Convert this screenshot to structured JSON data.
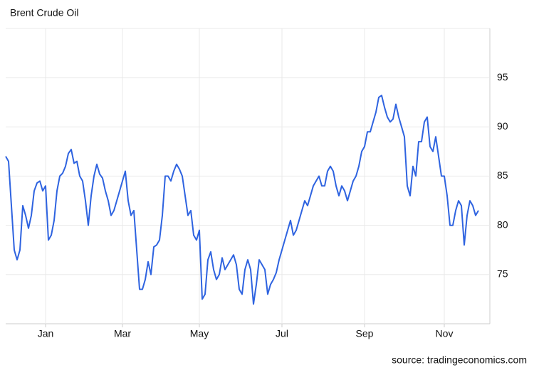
{
  "chart_data": {
    "type": "line",
    "title": "Brent Crude Oil",
    "source": "source: tradingeconomics.com",
    "categories": [
      null,
      null,
      null,
      null,
      null,
      null,
      null,
      null,
      null,
      null,
      null,
      null,
      null,
      null,
      "Jan",
      null,
      null,
      null,
      null,
      null,
      null,
      null,
      null,
      null,
      null,
      null,
      null,
      null,
      null,
      null,
      null,
      null,
      null,
      null,
      null,
      null,
      null,
      null,
      null,
      null,
      null,
      "Mar",
      null,
      null,
      null,
      null,
      null,
      null,
      null,
      null,
      null,
      null,
      null,
      null,
      null,
      null,
      null,
      null,
      null,
      null,
      null,
      null,
      null,
      null,
      null,
      null,
      null,
      null,
      "May",
      null,
      null,
      null,
      null,
      null,
      null,
      null,
      null,
      null,
      null,
      null,
      null,
      null,
      null,
      null,
      null,
      null,
      null,
      null,
      null,
      null,
      null,
      null,
      null,
      null,
      null,
      null,
      null,
      "Jul",
      null,
      null,
      null,
      null,
      null,
      null,
      null,
      null,
      null,
      null,
      null,
      null,
      null,
      null,
      null,
      null,
      null,
      null,
      null,
      null,
      null,
      null,
      null,
      null,
      null,
      null,
      null,
      null,
      "Sep",
      null,
      null,
      null,
      null,
      null,
      null,
      null,
      null,
      null,
      null,
      null,
      null,
      null,
      null,
      null,
      null,
      null,
      null,
      null,
      null,
      null,
      null,
      null,
      null,
      null,
      null,
      null,
      "Nov",
      null,
      null,
      null,
      null,
      null,
      null,
      null,
      null,
      null,
      null,
      null,
      null
    ],
    "values": [
      87,
      86.5,
      82,
      77.5,
      76.5,
      77.5,
      82,
      81,
      79.7,
      81,
      83.5,
      84.3,
      84.5,
      83.5,
      84,
      78.5,
      79,
      80.5,
      83.5,
      85,
      85.3,
      86,
      87.3,
      87.7,
      86.3,
      86.5,
      85,
      84.5,
      82.5,
      80,
      83,
      85,
      86.2,
      85.2,
      84.8,
      83.5,
      82.5,
      81,
      81.5,
      82.5,
      83.5,
      84.5,
      85.5,
      82.5,
      81,
      81.5,
      77.5,
      73.5,
      73.5,
      74.5,
      76.3,
      75,
      77.8,
      78,
      78.5,
      81,
      85,
      85,
      84.5,
      85.5,
      86.2,
      85.7,
      85,
      83,
      81,
      81.5,
      79,
      78.5,
      79.5,
      72.5,
      73,
      76.5,
      77.3,
      75.5,
      74.5,
      75,
      76.7,
      75.5,
      76,
      76.5,
      77,
      76,
      73.5,
      73,
      75.5,
      76.5,
      75.5,
      72,
      74,
      76.5,
      76,
      75.5,
      73,
      74,
      74.5,
      75.2,
      76.5,
      77.5,
      78.5,
      79.5,
      80.5,
      79,
      79.5,
      80.5,
      81.5,
      82.5,
      82,
      83,
      84,
      84.5,
      85,
      84,
      84,
      85.5,
      86,
      85.5,
      84,
      83,
      84,
      83.5,
      82.5,
      83.5,
      84.5,
      85,
      86,
      87.5,
      88,
      89.5,
      89.5,
      90.5,
      91.5,
      93,
      93.2,
      92,
      91,
      90.5,
      90.8,
      92.3,
      91,
      90,
      89,
      84,
      83,
      86,
      85,
      88.5,
      88.5,
      90.5,
      91,
      88,
      87.5,
      89,
      87,
      85,
      85,
      83,
      80,
      80,
      81.5,
      82.5,
      82,
      78,
      81,
      82.5,
      82,
      81,
      81.5
    ],
    "color": "#2e63e0",
    "ylim": [
      70,
      100
    ],
    "yticks": [
      75,
      80,
      85,
      90,
      95
    ],
    "grid": true
  }
}
